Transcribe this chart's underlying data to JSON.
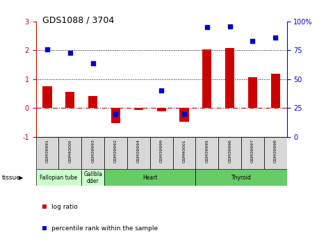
{
  "title": "GDS1088 / 3704",
  "samples": [
    "GSM39991",
    "GSM40000",
    "GSM39993",
    "GSM39992",
    "GSM39994",
    "GSM39999",
    "GSM40001",
    "GSM39995",
    "GSM39996",
    "GSM39997",
    "GSM39998"
  ],
  "log_ratio": [
    0.75,
    0.55,
    0.42,
    -0.52,
    -0.07,
    -0.12,
    -0.48,
    2.03,
    2.08,
    1.07,
    1.2
  ],
  "pct_rank_pct": [
    76,
    73,
    64,
    20,
    null,
    40,
    20,
    95,
    96,
    83,
    86
  ],
  "ylim_left": [
    -1,
    3
  ],
  "ylim_right": [
    0,
    100
  ],
  "bar_color": "#cc0000",
  "dot_color": "#0000cc",
  "zero_line_color": "#cc0000",
  "tissues": [
    {
      "label": "Fallopian tube",
      "start": 0,
      "end": 2,
      "color": "#ccffcc"
    },
    {
      "label": "Gallbla\ndder",
      "start": 2,
      "end": 3,
      "color": "#ccffcc"
    },
    {
      "label": "Heart",
      "start": 3,
      "end": 7,
      "color": "#66cc66"
    },
    {
      "label": "Thyroid",
      "start": 7,
      "end": 11,
      "color": "#66cc66"
    }
  ],
  "legend_items": [
    {
      "label": "log ratio",
      "color": "#cc0000"
    },
    {
      "label": "percentile rank within the sample",
      "color": "#0000cc"
    }
  ],
  "sample_box_color": "#d8d8d8",
  "figsize": [
    4.69,
    3.45
  ],
  "dpi": 100
}
